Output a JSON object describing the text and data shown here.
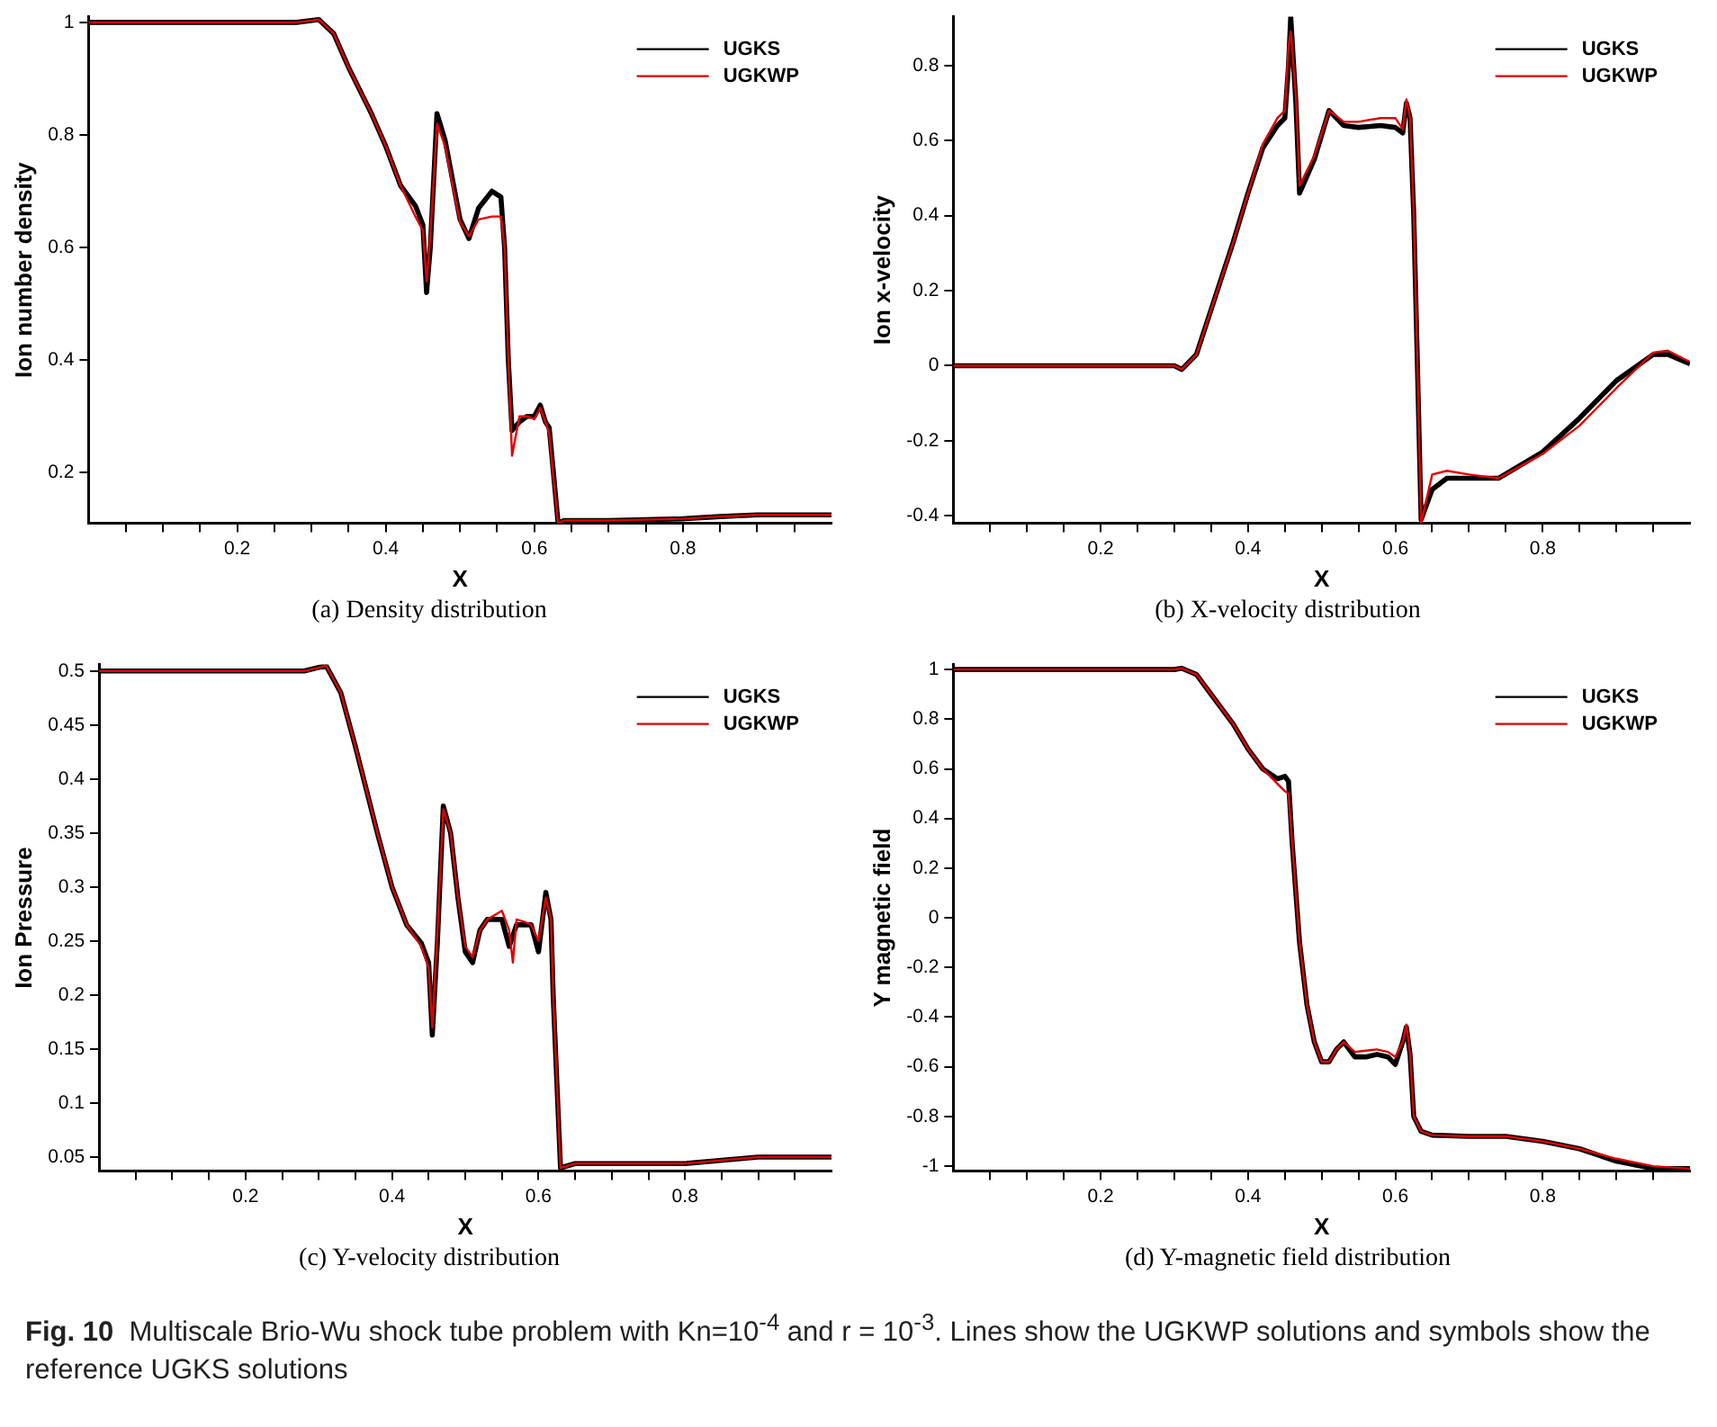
{
  "chart_data": [
    {
      "type": "line",
      "title": "(a) Density distribution",
      "xlabel": "X",
      "ylabel": "Ion number density",
      "legend": "top right",
      "grid": false,
      "marker": "none",
      "line_style": "solid",
      "xlim": [
        0,
        1
      ],
      "xticks": [
        {
          "value": 0.05,
          "label": null
        },
        {
          "value": 0.1,
          "label": null
        },
        {
          "value": 0.15,
          "label": null
        },
        0.2,
        {
          "value": 0.25,
          "label": null
        },
        {
          "value": 0.3,
          "label": null
        },
        {
          "value": 0.35,
          "label": null
        },
        0.4,
        {
          "value": 0.45,
          "label": null
        },
        {
          "value": 0.5,
          "label": null
        },
        {
          "value": 0.55,
          "label": null
        },
        0.6,
        {
          "value": 0.65,
          "label": null
        },
        {
          "value": 0.7,
          "label": null
        },
        {
          "value": 0.75,
          "label": null
        },
        0.8,
        {
          "value": 0.85,
          "label": null
        },
        {
          "value": 0.9,
          "label": null
        },
        {
          "value": 0.95,
          "label": null
        }
      ],
      "ylim": [
        0.11,
        1.01
      ],
      "yticks": [
        0.2,
        0.4,
        0.6,
        0.8,
        1
      ],
      "x": [
        0,
        0.1,
        0.2,
        0.28,
        0.31,
        0.33,
        0.35,
        0.38,
        0.4,
        0.42,
        0.44,
        0.45,
        0.455,
        0.46,
        0.469,
        0.48,
        0.49,
        0.5,
        0.512,
        0.525,
        0.543,
        0.555,
        0.56,
        0.565,
        0.57,
        0.58,
        0.59,
        0.6,
        0.608,
        0.615,
        0.62,
        0.625,
        0.632,
        0.64,
        0.7,
        0.8,
        0.85,
        0.9,
        1.0
      ],
      "series": [
        {
          "name": "UGKS",
          "color": "#000000",
          "values": [
            1,
            1,
            1,
            1,
            1.005,
            0.98,
            0.92,
            0.84,
            0.78,
            0.71,
            0.674,
            0.64,
            0.52,
            0.6,
            0.838,
            0.79,
            0.72,
            0.65,
            0.616,
            0.67,
            0.7,
            0.69,
            0.6,
            0.4,
            0.275,
            0.29,
            0.3,
            0.3,
            0.32,
            0.29,
            0.28,
            0.21,
            0.11,
            0.115,
            0.115,
            0.118,
            0.122,
            0.125,
            0.125
          ]
        },
        {
          "name": "UGKWP",
          "color": "#e00000",
          "values": [
            1,
            1,
            1,
            1,
            1.005,
            0.98,
            0.92,
            0.84,
            0.78,
            0.71,
            0.655,
            0.63,
            0.54,
            0.62,
            0.82,
            0.78,
            0.71,
            0.645,
            0.62,
            0.65,
            0.655,
            0.655,
            0.6,
            0.4,
            0.23,
            0.3,
            0.3,
            0.295,
            0.315,
            0.29,
            0.27,
            0.2,
            0.11,
            0.115,
            0.115,
            0.118,
            0.122,
            0.125,
            0.125
          ]
        }
      ]
    },
    {
      "type": "line",
      "title": "(b) X-velocity distribution",
      "xlabel": "X",
      "ylabel": "Ion x-velocity",
      "legend": "top right",
      "grid": false,
      "marker": "none",
      "line_style": "solid",
      "xlim": [
        0,
        1
      ],
      "xticks": [
        {
          "value": 0.05,
          "label": null
        },
        {
          "value": 0.1,
          "label": null
        },
        {
          "value": 0.15,
          "label": null
        },
        0.2,
        {
          "value": 0.25,
          "label": null
        },
        {
          "value": 0.3,
          "label": null
        },
        {
          "value": 0.35,
          "label": null
        },
        0.4,
        {
          "value": 0.45,
          "label": null
        },
        {
          "value": 0.5,
          "label": null
        },
        {
          "value": 0.55,
          "label": null
        },
        0.6,
        {
          "value": 0.65,
          "label": null
        },
        {
          "value": 0.7,
          "label": null
        },
        {
          "value": 0.75,
          "label": null
        },
        0.8,
        {
          "value": 0.85,
          "label": null
        },
        {
          "value": 0.9,
          "label": null
        },
        {
          "value": 0.95,
          "label": null
        }
      ],
      "ylim": [
        -0.42,
        0.93
      ],
      "yticks": [
        -0.4,
        -0.2,
        0,
        0.2,
        0.4,
        0.6,
        0.8
      ],
      "x": [
        0,
        0.1,
        0.2,
        0.3,
        0.31,
        0.33,
        0.35,
        0.38,
        0.4,
        0.42,
        0.44,
        0.45,
        0.455,
        0.458,
        0.465,
        0.47,
        0.49,
        0.51,
        0.53,
        0.55,
        0.58,
        0.6,
        0.61,
        0.615,
        0.62,
        0.625,
        0.63,
        0.635,
        0.65,
        0.67,
        0.7,
        0.74,
        0.8,
        0.85,
        0.9,
        0.95,
        0.97,
        1.0
      ],
      "series": [
        {
          "name": "UGKS",
          "color": "#000000",
          "values": [
            0,
            0,
            0,
            0,
            -0.01,
            0.03,
            0.15,
            0.33,
            0.46,
            0.58,
            0.64,
            0.66,
            0.8,
            0.93,
            0.7,
            0.46,
            0.55,
            0.68,
            0.64,
            0.635,
            0.64,
            0.635,
            0.62,
            0.7,
            0.66,
            0.4,
            0,
            -0.41,
            -0.33,
            -0.3,
            -0.3,
            -0.3,
            -0.23,
            -0.14,
            -0.04,
            0.03,
            0.03,
            0.005
          ]
        },
        {
          "name": "UGKWP",
          "color": "#e00000",
          "values": [
            0,
            0,
            0,
            0,
            -0.01,
            0.03,
            0.15,
            0.33,
            0.46,
            0.59,
            0.66,
            0.68,
            0.85,
            0.89,
            0.72,
            0.48,
            0.56,
            0.68,
            0.65,
            0.65,
            0.66,
            0.66,
            0.63,
            0.71,
            0.66,
            0.4,
            0,
            -0.42,
            -0.29,
            -0.28,
            -0.29,
            -0.3,
            -0.235,
            -0.16,
            -0.06,
            0.035,
            0.04,
            0.01
          ]
        }
      ]
    },
    {
      "type": "line",
      "title": "(c) Y-velocity distribution",
      "xlabel": "X",
      "ylabel": "Ion Pressure",
      "legend": "top right",
      "grid": false,
      "marker": "none",
      "line_style": "solid",
      "xlim": [
        0,
        1
      ],
      "xticks": [
        {
          "value": 0.05,
          "label": null
        },
        {
          "value": 0.1,
          "label": null
        },
        {
          "value": 0.15,
          "label": null
        },
        0.2,
        {
          "value": 0.25,
          "label": null
        },
        {
          "value": 0.3,
          "label": null
        },
        {
          "value": 0.35,
          "label": null
        },
        0.4,
        {
          "value": 0.45,
          "label": null
        },
        {
          "value": 0.5,
          "label": null
        },
        {
          "value": 0.55,
          "label": null
        },
        0.6,
        {
          "value": 0.65,
          "label": null
        },
        {
          "value": 0.7,
          "label": null
        },
        {
          "value": 0.75,
          "label": null
        },
        0.8,
        {
          "value": 0.85,
          "label": null
        },
        {
          "value": 0.9,
          "label": null
        },
        {
          "value": 0.95,
          "label": null
        }
      ],
      "ylim": [
        0.037,
        0.506
      ],
      "yticks": [
        0.05,
        0.1,
        0.15,
        0.2,
        0.25,
        0.3,
        0.35,
        0.4,
        0.45,
        0.5
      ],
      "x": [
        0,
        0.1,
        0.2,
        0.28,
        0.31,
        0.33,
        0.35,
        0.38,
        0.4,
        0.42,
        0.44,
        0.45,
        0.455,
        0.462,
        0.47,
        0.48,
        0.49,
        0.5,
        0.51,
        0.52,
        0.53,
        0.55,
        0.56,
        0.565,
        0.57,
        0.58,
        0.59,
        0.6,
        0.61,
        0.617,
        0.62,
        0.625,
        0.63,
        0.65,
        0.8,
        0.9,
        1.0
      ],
      "series": [
        {
          "name": "UGKS",
          "color": "#000000",
          "values": [
            0.5,
            0.5,
            0.5,
            0.5,
            0.505,
            0.48,
            0.43,
            0.35,
            0.3,
            0.265,
            0.248,
            0.23,
            0.163,
            0.25,
            0.375,
            0.35,
            0.29,
            0.24,
            0.23,
            0.26,
            0.27,
            0.27,
            0.245,
            0.255,
            0.265,
            0.265,
            0.265,
            0.24,
            0.295,
            0.27,
            0.2,
            0.12,
            0.04,
            0.044,
            0.044,
            0.05,
            0.05
          ]
        },
        {
          "name": "UGKWP",
          "color": "#e00000",
          "values": [
            0.5,
            0.5,
            0.5,
            0.5,
            0.505,
            0.48,
            0.43,
            0.35,
            0.3,
            0.265,
            0.245,
            0.225,
            0.17,
            0.26,
            0.372,
            0.35,
            0.29,
            0.245,
            0.235,
            0.26,
            0.27,
            0.278,
            0.26,
            0.23,
            0.27,
            0.268,
            0.265,
            0.25,
            0.29,
            0.27,
            0.2,
            0.12,
            0.04,
            0.044,
            0.044,
            0.05,
            0.05
          ]
        }
      ]
    },
    {
      "type": "line",
      "title": "(d) Y-magnetic field distribution",
      "xlabel": "X",
      "ylabel": "Y magnetic field",
      "legend": "top right",
      "grid": false,
      "marker": "none",
      "line_style": "solid",
      "xlim": [
        0,
        1
      ],
      "xticks": [
        {
          "value": 0.05,
          "label": null
        },
        {
          "value": 0.1,
          "label": null
        },
        {
          "value": 0.15,
          "label": null
        },
        0.2,
        {
          "value": 0.25,
          "label": null
        },
        {
          "value": 0.3,
          "label": null
        },
        {
          "value": 0.35,
          "label": null
        },
        0.4,
        {
          "value": 0.45,
          "label": null
        },
        {
          "value": 0.5,
          "label": null
        },
        {
          "value": 0.55,
          "label": null
        },
        0.6,
        {
          "value": 0.65,
          "label": null
        },
        {
          "value": 0.7,
          "label": null
        },
        {
          "value": 0.75,
          "label": null
        },
        0.8,
        {
          "value": 0.85,
          "label": null
        },
        {
          "value": 0.9,
          "label": null
        },
        {
          "value": 0.95,
          "label": null
        }
      ],
      "ylim": [
        -1.02,
        1.02
      ],
      "yticks": [
        -1,
        -0.8,
        -0.6,
        -0.4,
        -0.2,
        0,
        0.2,
        0.4,
        0.6,
        0.8,
        1
      ],
      "x": [
        0,
        0.1,
        0.2,
        0.3,
        0.31,
        0.33,
        0.35,
        0.38,
        0.4,
        0.42,
        0.44,
        0.45,
        0.455,
        0.46,
        0.465,
        0.47,
        0.48,
        0.49,
        0.5,
        0.51,
        0.52,
        0.53,
        0.545,
        0.56,
        0.575,
        0.59,
        0.6,
        0.61,
        0.615,
        0.62,
        0.625,
        0.635,
        0.65,
        0.7,
        0.75,
        0.8,
        0.85,
        0.9,
        0.95,
        1.0
      ],
      "series": [
        {
          "name": "UGKS",
          "color": "#000000",
          "values": [
            1,
            1,
            1,
            1,
            1.005,
            0.98,
            0.9,
            0.78,
            0.68,
            0.6,
            0.56,
            0.57,
            0.55,
            0.3,
            0.1,
            -0.1,
            -0.35,
            -0.5,
            -0.58,
            -0.58,
            -0.53,
            -0.5,
            -0.56,
            -0.56,
            -0.55,
            -0.56,
            -0.59,
            -0.5,
            -0.44,
            -0.55,
            -0.8,
            -0.86,
            -0.875,
            -0.88,
            -0.88,
            -0.9,
            -0.93,
            -0.98,
            -1.01,
            -1.01
          ]
        },
        {
          "name": "UGKWP",
          "color": "#e00000",
          "values": [
            1,
            1,
            1,
            1,
            1.005,
            0.98,
            0.9,
            0.78,
            0.68,
            0.6,
            0.54,
            0.51,
            0.5,
            0.3,
            0.1,
            -0.1,
            -0.35,
            -0.5,
            -0.58,
            -0.58,
            -0.53,
            -0.5,
            -0.54,
            -0.535,
            -0.53,
            -0.54,
            -0.56,
            -0.5,
            -0.43,
            -0.55,
            -0.8,
            -0.86,
            -0.875,
            -0.88,
            -0.88,
            -0.9,
            -0.93,
            -0.97,
            -1.0,
            -1.01
          ]
        }
      ],
      "annotations": [
        "Fig. 10",
        "Multiscale Brio-Wu shock tube problem with Kn=10$^{-4}$ and r = 10$^{-3}$. Lines show the UGKWP solutions and symbols show the reference UGKS solutions"
      ]
    }
  ]
}
